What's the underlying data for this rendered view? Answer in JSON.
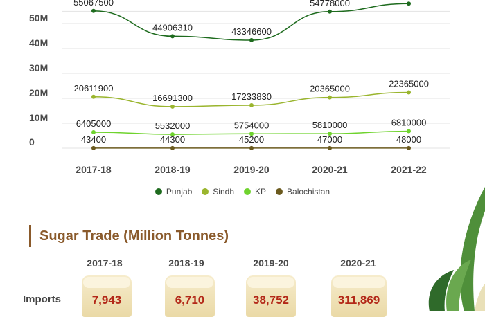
{
  "chart_data": {
    "type": "line",
    "categories": [
      "2017-18",
      "2018-19",
      "2019-20",
      "2020-21",
      "2021-22"
    ],
    "y_ticks": [
      "0",
      "10M",
      "20M",
      "30M",
      "40M",
      "50M"
    ],
    "ylim": [
      0,
      56000000
    ],
    "grid": true,
    "legend_position": "bottom",
    "series": [
      {
        "name": "Punjab",
        "color": "#1e6b1e",
        "values": [
          55067500,
          44906310,
          43346600,
          54778000,
          58000000
        ],
        "labels": [
          "55067500",
          "44906310",
          "43346600",
          "54778000",
          ""
        ]
      },
      {
        "name": "Sindh",
        "color": "#9ab52e",
        "values": [
          20611900,
          16691300,
          17233830,
          20365000,
          22365000
        ],
        "labels": [
          "20611900",
          "16691300",
          "17233830",
          "20365000",
          "22365000"
        ]
      },
      {
        "name": "KP",
        "color": "#6fd32e",
        "values": [
          6405000,
          5532000,
          5754000,
          5810000,
          6810000
        ],
        "labels": [
          "6405000",
          "5532000",
          "5754000",
          "5810000",
          "6810000"
        ]
      },
      {
        "name": "Balochistan",
        "color": "#6b5a1e",
        "values": [
          43400,
          44300,
          45200,
          47000,
          48000
        ],
        "labels": [
          "43400",
          "44300",
          "45200",
          "47000",
          "48000"
        ]
      }
    ]
  },
  "trade": {
    "title": "Sugar Trade (Million Tonnes)",
    "years": [
      "2017-18",
      "2018-19",
      "2019-20",
      "2020-21"
    ],
    "row_label": "Imports",
    "imports": [
      "7,943",
      "6,710",
      "38,752",
      "311,869"
    ]
  },
  "colors": {
    "accent": "#8a5a2b",
    "value_red": "#b32818"
  }
}
